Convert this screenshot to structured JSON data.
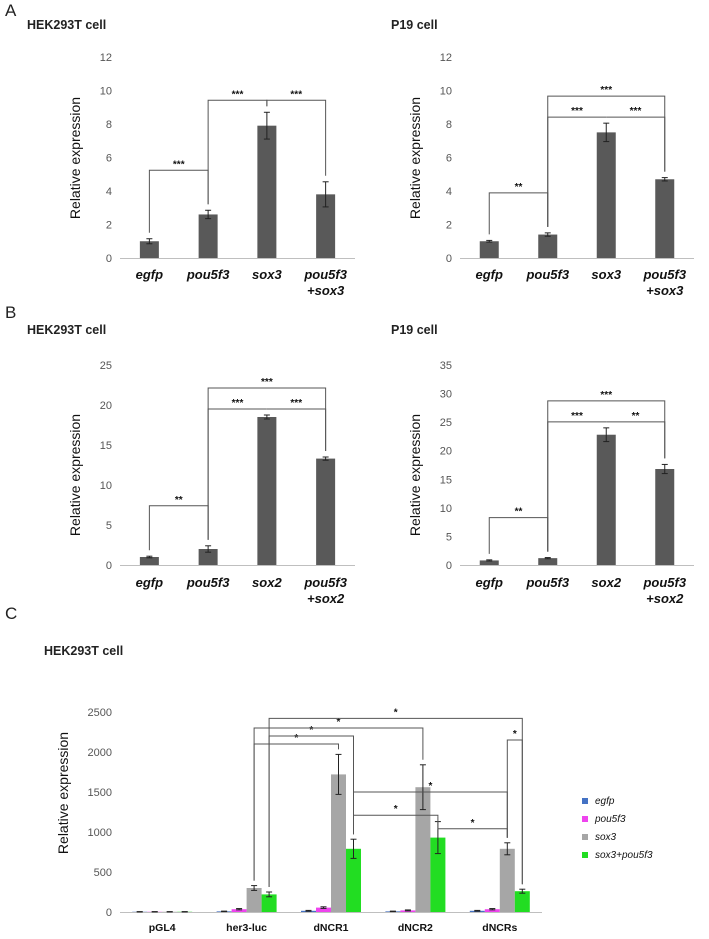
{
  "panels": {
    "A": {
      "letter": "A"
    },
    "B": {
      "letter": "B"
    },
    "C": {
      "letter": "C"
    }
  },
  "chart_data": [
    {
      "id": "A1",
      "panel": "A",
      "type": "bar",
      "title": "HEK293T cell",
      "ylabel": "Relative expression",
      "ylim": [
        0,
        12
      ],
      "yticks": [
        0,
        2,
        4,
        6,
        8,
        10,
        12
      ],
      "categories": [
        "egfp",
        "pou5f3",
        "sox3",
        "pou5f3\n+sox3"
      ],
      "values": [
        1.0,
        2.6,
        7.9,
        3.8
      ],
      "errors": [
        0.15,
        0.25,
        0.8,
        0.75
      ],
      "color": "#595959",
      "significance": [
        {
          "from": 0,
          "to": 1,
          "label": "***"
        },
        {
          "from": 1,
          "to": 2,
          "label": "***"
        },
        {
          "from": 2,
          "to": 3,
          "label": "***"
        }
      ]
    },
    {
      "id": "A2",
      "panel": "A",
      "type": "bar",
      "title": "P19 cell",
      "ylabel": "Relative expression",
      "ylim": [
        0,
        12
      ],
      "yticks": [
        0,
        2,
        4,
        6,
        8,
        10,
        12
      ],
      "categories": [
        "egfp",
        "pou5f3",
        "sox3",
        "pou5f3\n+sox3"
      ],
      "values": [
        1.0,
        1.4,
        7.5,
        4.7
      ],
      "errors": [
        0.05,
        0.1,
        0.55,
        0.1
      ],
      "color": "#595959",
      "significance": [
        {
          "from": 0,
          "to": 1,
          "label": "**"
        },
        {
          "from": 1,
          "to": 2,
          "label": "***"
        },
        {
          "from": 2,
          "to": 3,
          "label": "***"
        },
        {
          "from": 1,
          "to": 3,
          "label": "***"
        }
      ]
    },
    {
      "id": "B1",
      "panel": "B",
      "type": "bar",
      "title": "HEK293T cell",
      "ylabel": "Relative expression",
      "ylim": [
        0,
        25
      ],
      "yticks": [
        0,
        5,
        10,
        15,
        20,
        25
      ],
      "categories": [
        "egfp",
        "pou5f3",
        "sox2",
        "pou5f3\n+sox2"
      ],
      "values": [
        1.0,
        2.0,
        18.5,
        13.3
      ],
      "errors": [
        0.1,
        0.4,
        0.25,
        0.2
      ],
      "color": "#595959",
      "significance": [
        {
          "from": 0,
          "to": 1,
          "label": "**"
        },
        {
          "from": 1,
          "to": 2,
          "label": "***"
        },
        {
          "from": 2,
          "to": 3,
          "label": "***"
        },
        {
          "from": 1,
          "to": 3,
          "label": "***"
        }
      ]
    },
    {
      "id": "B2",
      "panel": "B",
      "type": "bar",
      "title": "P19 cell",
      "ylabel": "Relative expression",
      "ylim": [
        0,
        35
      ],
      "yticks": [
        0,
        5,
        10,
        15,
        20,
        25,
        30,
        35
      ],
      "categories": [
        "egfp",
        "pou5f3",
        "sox2",
        "pou5f3\n+sox2"
      ],
      "values": [
        0.8,
        1.2,
        22.8,
        16.8
      ],
      "errors": [
        0.1,
        0.1,
        1.2,
        0.8
      ],
      "color": "#595959",
      "significance": [
        {
          "from": 0,
          "to": 1,
          "label": "**"
        },
        {
          "from": 1,
          "to": 2,
          "label": "***"
        },
        {
          "from": 2,
          "to": 3,
          "label": "**"
        },
        {
          "from": 1,
          "to": 3,
          "label": "***"
        }
      ]
    },
    {
      "id": "C",
      "panel": "C",
      "type": "bar",
      "title": "HEK293T cell",
      "ylabel": "Relative expression",
      "ylim": [
        0,
        2500
      ],
      "yticks": [
        0,
        500,
        1000,
        1500,
        2000,
        2500
      ],
      "categories": [
        "pGL4",
        "her3-luc",
        "dNCR1",
        "dNCR2",
        "dNCRs"
      ],
      "series": [
        {
          "name": "egfp",
          "color": "#4472c4",
          "values": [
            3,
            8,
            15,
            8,
            15
          ],
          "errors": [
            2,
            3,
            5,
            3,
            5
          ]
        },
        {
          "name": "pou5f3",
          "color": "#ee44ee",
          "values": [
            3,
            35,
            55,
            20,
            35
          ],
          "errors": [
            2,
            8,
            10,
            6,
            8
          ]
        },
        {
          "name": "sox3",
          "color": "#a6a6a6",
          "values": [
            3,
            300,
            1720,
            1560,
            790
          ],
          "errors": [
            2,
            30,
            250,
            280,
            75
          ]
        },
        {
          "name": "sox3+pou5f3",
          "color": "#22dd22",
          "values": [
            3,
            220,
            790,
            930,
            260
          ],
          "errors": [
            2,
            30,
            120,
            200,
            25
          ]
        }
      ],
      "legend": "right",
      "significance_label": "*"
    }
  ]
}
